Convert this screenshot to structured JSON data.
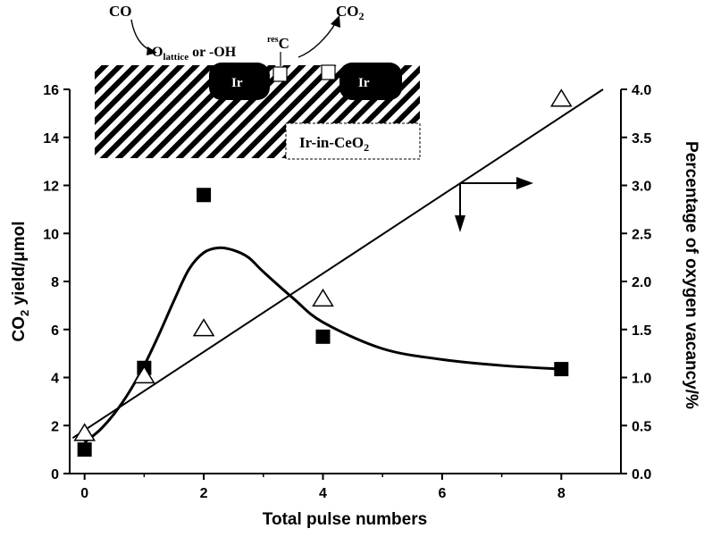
{
  "chart_data": {
    "type": "scatter",
    "xlabel": "Total pulse numbers",
    "ylabel_left": {
      "main": "CO",
      "sub": "2",
      "rest": " yield/μmol"
    },
    "ylabel_right": "Percentage of oxygen vacancy/%",
    "xlim": [
      -0.25,
      9.0
    ],
    "ylim_left": [
      0,
      16
    ],
    "ylim_right": [
      0.0,
      4.0
    ],
    "x_ticks": [
      "0",
      "2",
      "4",
      "6",
      "8"
    ],
    "y_ticks_left": [
      "0",
      "2",
      "4",
      "6",
      "8",
      "10",
      "12",
      "14",
      "16"
    ],
    "y_ticks_right": [
      "0.0",
      "0.5",
      "1.0",
      "1.5",
      "2.0",
      "2.5",
      "3.0",
      "3.5",
      "4.0"
    ],
    "series": [
      {
        "marker": "filled-square",
        "axis": "left",
        "x": [
          0,
          1,
          2,
          4,
          8
        ],
        "y": [
          1.0,
          4.4,
          11.6,
          5.7,
          4.35
        ]
      },
      {
        "marker": "open-triangle",
        "axis": "right",
        "x": [
          0,
          1,
          2,
          4,
          8
        ],
        "y": [
          0.42,
          1.02,
          1.51,
          1.82,
          3.9
        ]
      }
    ],
    "fit_line": {
      "axis": "right",
      "x": [
        -0.2,
        8.7
      ],
      "y": [
        0.37,
        4.0
      ]
    },
    "fit_curve": {
      "axis": "left",
      "x": [
        0,
        0.25,
        0.5,
        0.75,
        1.0,
        1.25,
        1.5,
        1.75,
        2.0,
        2.25,
        2.5,
        2.75,
        3.0,
        3.5,
        4.0,
        5.0,
        6.0,
        7.0,
        8.0
      ],
      "y": [
        1.3,
        1.8,
        2.5,
        3.4,
        4.5,
        5.8,
        7.2,
        8.5,
        9.2,
        9.4,
        9.3,
        9.0,
        8.4,
        7.3,
        6.3,
        5.2,
        4.75,
        4.5,
        4.35
      ]
    },
    "annotation": "arrows pointing down (squares → left axis) and right (triangles → right axis)"
  },
  "inset": {
    "reactant": "CO",
    "product": {
      "main": "CO",
      "sub": "2"
    },
    "path_text": {
      "prefix": "O",
      "sub": "lattice",
      "suffix": " or -OH"
    },
    "residue": {
      "sup": "res",
      "main": "C"
    },
    "ir_label": "Ir",
    "support": {
      "main": "Ir-in-CeO",
      "sub": "2"
    }
  }
}
